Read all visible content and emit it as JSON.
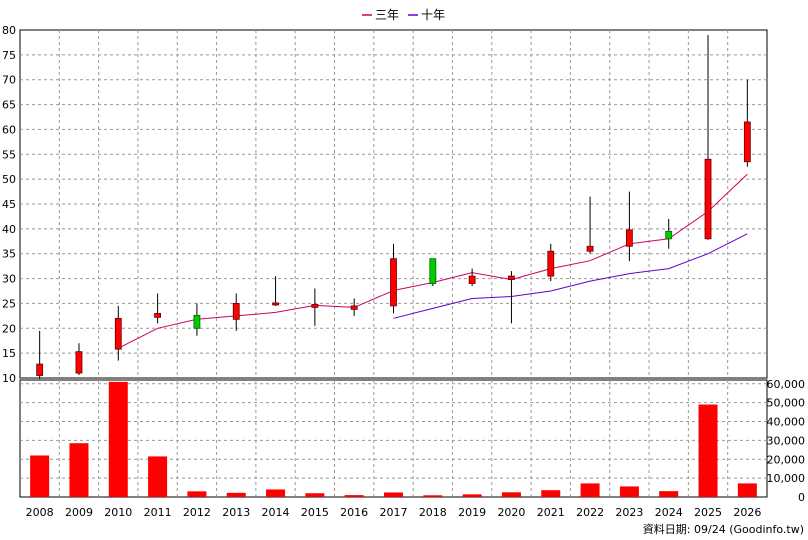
{
  "legend": {
    "items": [
      {
        "label": "三年",
        "color": "#CC0066"
      },
      {
        "label": "十年",
        "color": "#6600CC"
      }
    ],
    "placement": "top-center"
  },
  "footer_note": "資料日期: 09/24  (Goodinfo.tw)",
  "colors": {
    "candle_up": "#FF0000",
    "candle_down": "#00CC00",
    "candle_outline": "#660000",
    "volume_bar": "#FF0000",
    "grid": "#999999",
    "background": "#FFFFFF"
  },
  "chart_data": [
    {
      "type": "candlestick",
      "title": "",
      "ylim": [
        10,
        80
      ],
      "y_ticks": [
        10,
        15,
        20,
        25,
        30,
        35,
        40,
        45,
        50,
        55,
        60,
        65,
        70,
        75,
        80
      ],
      "grid": true,
      "categories": [
        "2008",
        "2009",
        "2010",
        "2011",
        "2012",
        "2013",
        "2014",
        "2015",
        "2016",
        "2017",
        "2018",
        "2019",
        "2020",
        "2021",
        "2022",
        "2023",
        "2024",
        "2025",
        "2026"
      ],
      "ohlc": [
        {
          "open": 10.5,
          "high": 19.5,
          "low": 9.8,
          "close": 12.8
        },
        {
          "open": 11.0,
          "high": 17.0,
          "low": 10.6,
          "close": 15.3
        },
        {
          "open": 15.8,
          "high": 24.5,
          "low": 13.5,
          "close": 22.0
        },
        {
          "open": 22.2,
          "high": 27.0,
          "low": 21.0,
          "close": 23.0
        },
        {
          "open": 22.6,
          "high": 25.0,
          "low": 18.5,
          "close": 20.0
        },
        {
          "open": 21.8,
          "high": 27.0,
          "low": 19.5,
          "close": 25.0
        },
        {
          "open": 24.9,
          "high": 30.5,
          "low": 24.5,
          "close": 25.1
        },
        {
          "open": 24.2,
          "high": 28.0,
          "low": 20.5,
          "close": 24.8
        },
        {
          "open": 23.8,
          "high": 26.0,
          "low": 22.5,
          "close": 24.5
        },
        {
          "open": 24.5,
          "high": 37.0,
          "low": 23.0,
          "close": 34.0
        },
        {
          "open": 34.0,
          "high": 34.0,
          "low": 28.5,
          "close": 29.0
        },
        {
          "open": 29.0,
          "high": 32.0,
          "low": 28.5,
          "close": 30.5
        },
        {
          "open": 29.8,
          "high": 31.5,
          "low": 21.0,
          "close": 30.5
        },
        {
          "open": 30.5,
          "high": 37.0,
          "low": 29.5,
          "close": 35.5
        },
        {
          "open": 35.5,
          "high": 46.5,
          "low": 35.0,
          "close": 36.5
        },
        {
          "open": 36.5,
          "high": 47.5,
          "low": 33.5,
          "close": 39.8
        },
        {
          "open": 39.5,
          "high": 42.0,
          "low": 36.0,
          "close": 38.0
        },
        {
          "open": 38.0,
          "high": 79.0,
          "low": 37.8,
          "close": 54.0
        },
        {
          "open": 53.5,
          "high": 70.0,
          "low": 52.5,
          "close": 61.5
        }
      ],
      "series": [
        {
          "name": "三年",
          "color": "#CC0066",
          "values": [
            null,
            null,
            16.0,
            20.0,
            21.8,
            22.5,
            23.2,
            24.6,
            24.2,
            27.6,
            29.2,
            31.2,
            29.8,
            32.0,
            33.6,
            37.0,
            38.0,
            43.5,
            51.0
          ]
        },
        {
          "name": "十年",
          "color": "#6600CC",
          "values": [
            null,
            null,
            null,
            null,
            null,
            null,
            null,
            null,
            null,
            22.0,
            24.0,
            26.0,
            26.4,
            27.5,
            29.5,
            31.0,
            32.0,
            35.0,
            39.0
          ]
        }
      ]
    },
    {
      "type": "bar",
      "title": "",
      "categories": [
        "2008",
        "2009",
        "2010",
        "2011",
        "2012",
        "2013",
        "2014",
        "2015",
        "2016",
        "2017",
        "2018",
        "2019",
        "2020",
        "2021",
        "2022",
        "2023",
        "2024",
        "2025",
        "2026"
      ],
      "values": [
        22000,
        28500,
        61000,
        21500,
        3000,
        2200,
        4000,
        2000,
        1000,
        2400,
        900,
        1400,
        2500,
        3600,
        7200,
        5600,
        3100,
        49000,
        7200
      ],
      "ylim": [
        0,
        62000
      ],
      "y_ticks": [
        0,
        10000,
        20000,
        30000,
        40000,
        50000,
        60000
      ],
      "y_tick_labels": [
        "0",
        "10,000",
        "20,000",
        "30,000",
        "40,000",
        "50,000",
        "60,000"
      ],
      "grid": true,
      "x_tick_labels": [
        "2008",
        "2009",
        "2010",
        "2011",
        "2012",
        "2013",
        "2014",
        "2015",
        "2016",
        "2017",
        "2018",
        "2019",
        "2020",
        "2021",
        "2022",
        "2023",
        "2024",
        "2025",
        "2026"
      ]
    }
  ]
}
